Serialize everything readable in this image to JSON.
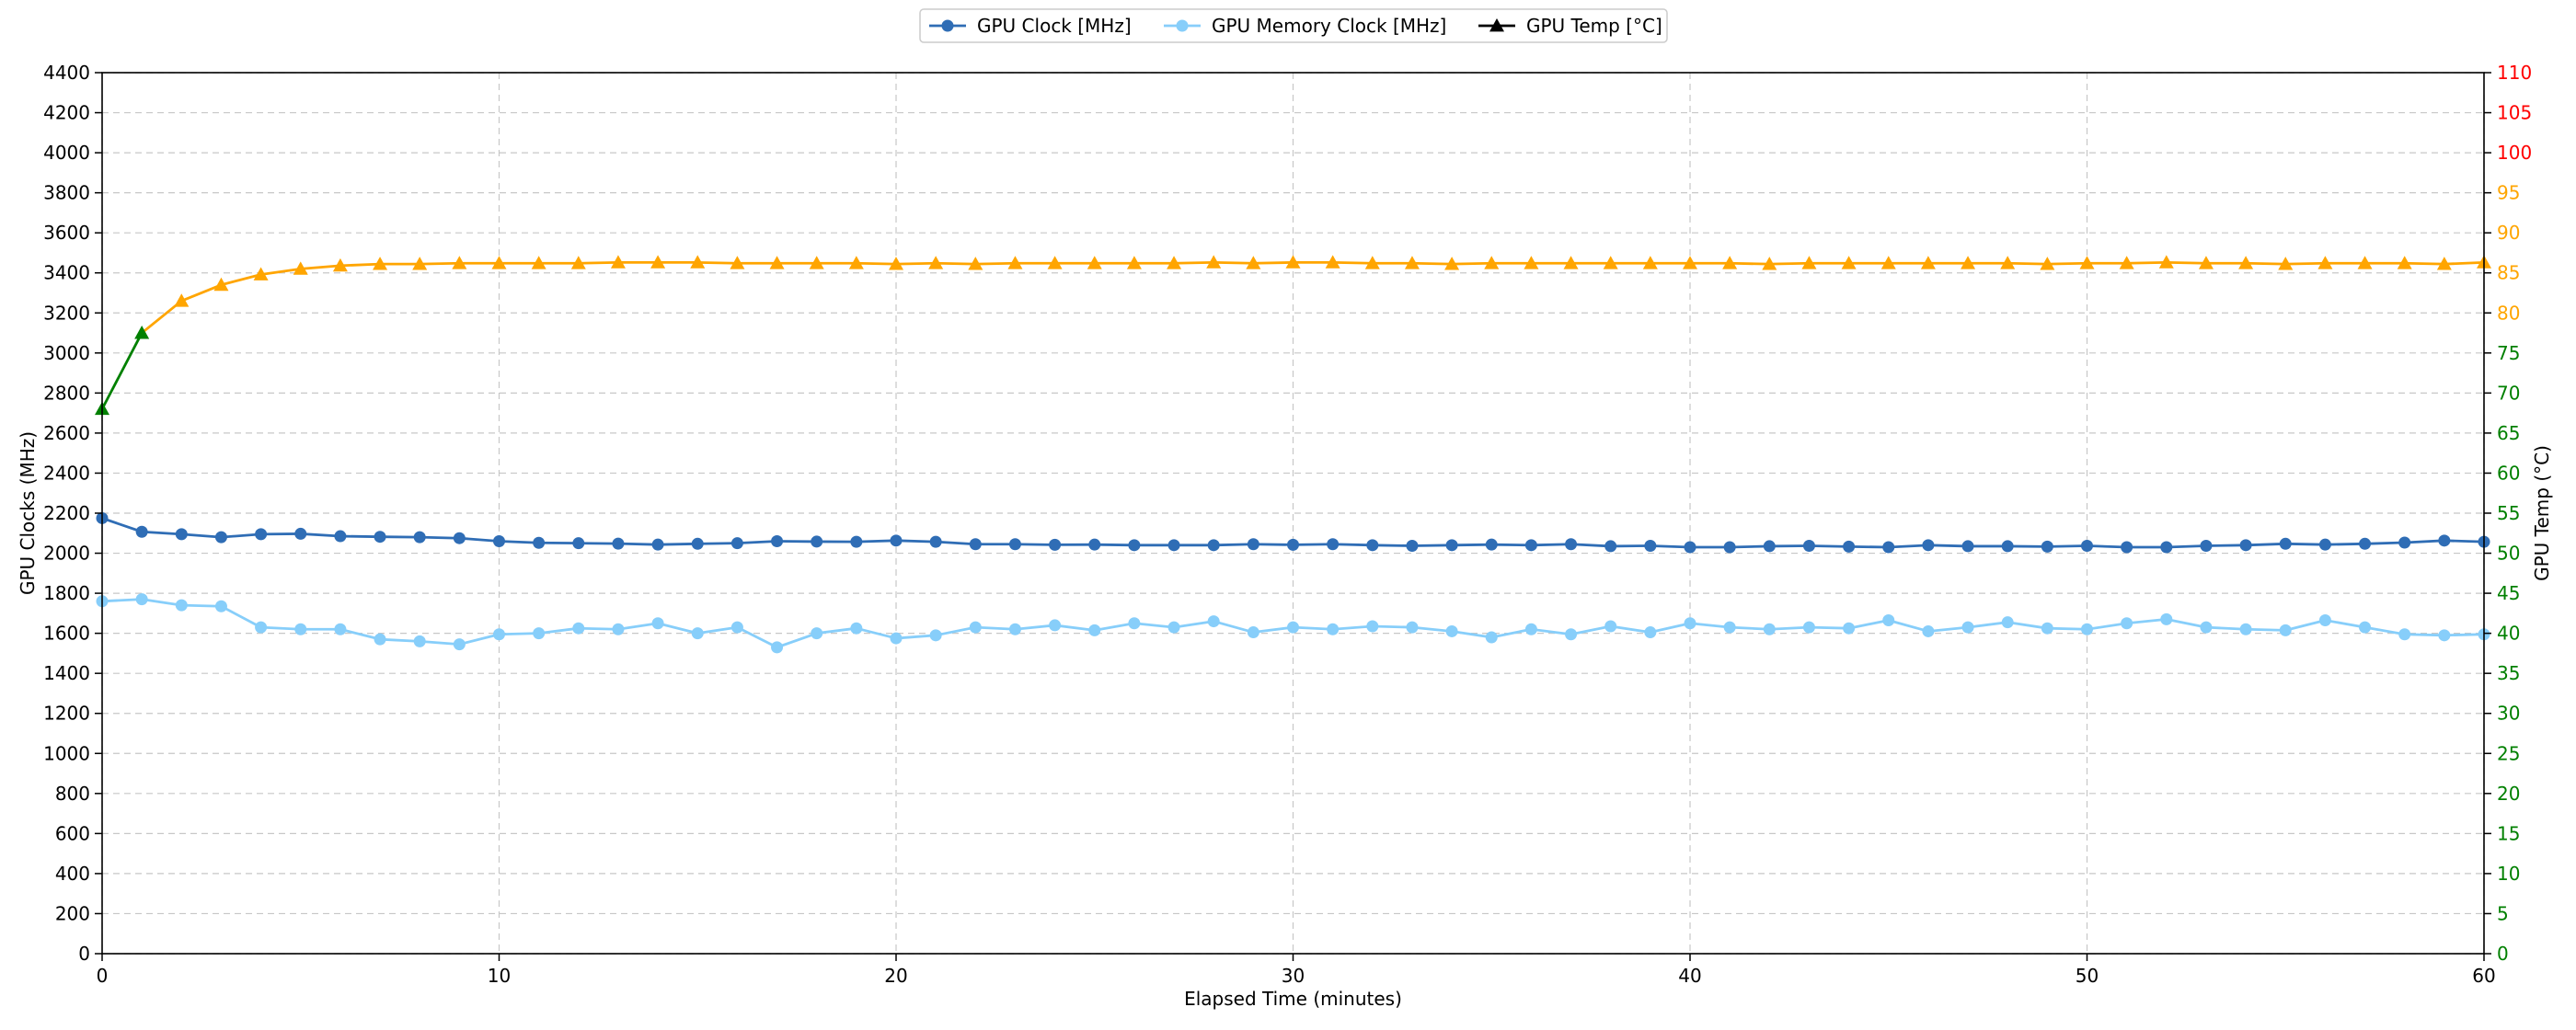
{
  "chart_data": {
    "type": "line",
    "xlabel": "Elapsed Time (minutes)",
    "ylabel_left": "GPU Clocks (MHz)",
    "ylabel_right": "GPU Temp (°C)",
    "xlim": [
      0,
      60
    ],
    "ylim_left": [
      0,
      4400
    ],
    "ylim_right": [
      0,
      110
    ],
    "x_ticks": [
      0,
      10,
      20,
      30,
      40,
      50,
      60
    ],
    "y_ticks_left": [
      0,
      200,
      400,
      600,
      800,
      1000,
      1200,
      1400,
      1600,
      1800,
      2000,
      2200,
      2400,
      2600,
      2800,
      3000,
      3200,
      3400,
      3600,
      3800,
      4000,
      4200,
      4400
    ],
    "y_ticks_right": [
      0,
      5,
      10,
      15,
      20,
      25,
      30,
      35,
      40,
      45,
      50,
      55,
      60,
      65,
      70,
      75,
      80,
      85,
      90,
      95,
      100,
      105,
      110
    ],
    "y_tick_colors_right": {
      "below_80": "#008000",
      "80_to_99": "#FFA500",
      "100_plus": "#FF0000"
    },
    "grid": true,
    "legend_position": "top-center",
    "x": [
      0,
      1,
      2,
      3,
      4,
      5,
      6,
      7,
      8,
      9,
      10,
      11,
      12,
      13,
      14,
      15,
      16,
      17,
      18,
      19,
      20,
      21,
      22,
      23,
      24,
      25,
      26,
      27,
      28,
      29,
      30,
      31,
      32,
      33,
      34,
      35,
      36,
      37,
      38,
      39,
      40,
      41,
      42,
      43,
      44,
      45,
      46,
      47,
      48,
      49,
      50,
      51,
      52,
      53,
      54,
      55,
      56,
      57,
      58,
      59,
      60
    ],
    "series": [
      {
        "name": "GPU Clock [MHz]",
        "axis": "left",
        "color": "#2F6DB5",
        "marker": "circle",
        "values": [
          2175,
          2107,
          2095,
          2080,
          2095,
          2097,
          2085,
          2082,
          2080,
          2075,
          2060,
          2052,
          2050,
          2048,
          2043,
          2047,
          2050,
          2060,
          2058,
          2057,
          2063,
          2057,
          2045,
          2045,
          2042,
          2043,
          2040,
          2040,
          2040,
          2045,
          2042,
          2045,
          2040,
          2037,
          2040,
          2043,
          2040,
          2045,
          2035,
          2037,
          2030,
          2030,
          2035,
          2037,
          2033,
          2030,
          2040,
          2035,
          2035,
          2033,
          2037,
          2030,
          2030,
          2037,
          2040,
          2047,
          2043,
          2047,
          2053,
          2063,
          2057
        ]
      },
      {
        "name": "GPU Memory Clock [MHz]",
        "axis": "left",
        "color": "#87CEFA",
        "marker": "circle",
        "values": [
          1760,
          1770,
          1740,
          1735,
          1630,
          1620,
          1620,
          1570,
          1560,
          1545,
          1595,
          1600,
          1625,
          1620,
          1650,
          1600,
          1630,
          1530,
          1600,
          1625,
          1575,
          1590,
          1630,
          1620,
          1640,
          1615,
          1650,
          1630,
          1660,
          1605,
          1630,
          1620,
          1635,
          1630,
          1610,
          1580,
          1620,
          1595,
          1635,
          1605,
          1650,
          1630,
          1620,
          1630,
          1625,
          1665,
          1610,
          1630,
          1655,
          1625,
          1620,
          1650,
          1670,
          1630,
          1620,
          1615,
          1665,
          1630,
          1595,
          1590,
          1595
        ]
      },
      {
        "name": "GPU Temp [°C]",
        "axis": "right",
        "color_scale": {
          "below_80": "#008000",
          "80_plus": "#FFA500"
        },
        "marker": "triangle",
        "values": [
          68,
          77.5,
          81.5,
          83.5,
          84.8,
          85.5,
          85.9,
          86.1,
          86.1,
          86.2,
          86.2,
          86.2,
          86.2,
          86.3,
          86.3,
          86.3,
          86.2,
          86.2,
          86.2,
          86.2,
          86.1,
          86.2,
          86.1,
          86.2,
          86.2,
          86.2,
          86.2,
          86.2,
          86.3,
          86.2,
          86.3,
          86.3,
          86.2,
          86.2,
          86.1,
          86.2,
          86.2,
          86.2,
          86.2,
          86.2,
          86.2,
          86.2,
          86.1,
          86.2,
          86.2,
          86.2,
          86.2,
          86.2,
          86.2,
          86.1,
          86.2,
          86.2,
          86.3,
          86.2,
          86.2,
          86.1,
          86.2,
          86.2,
          86.2,
          86.1,
          86.3
        ]
      }
    ]
  }
}
